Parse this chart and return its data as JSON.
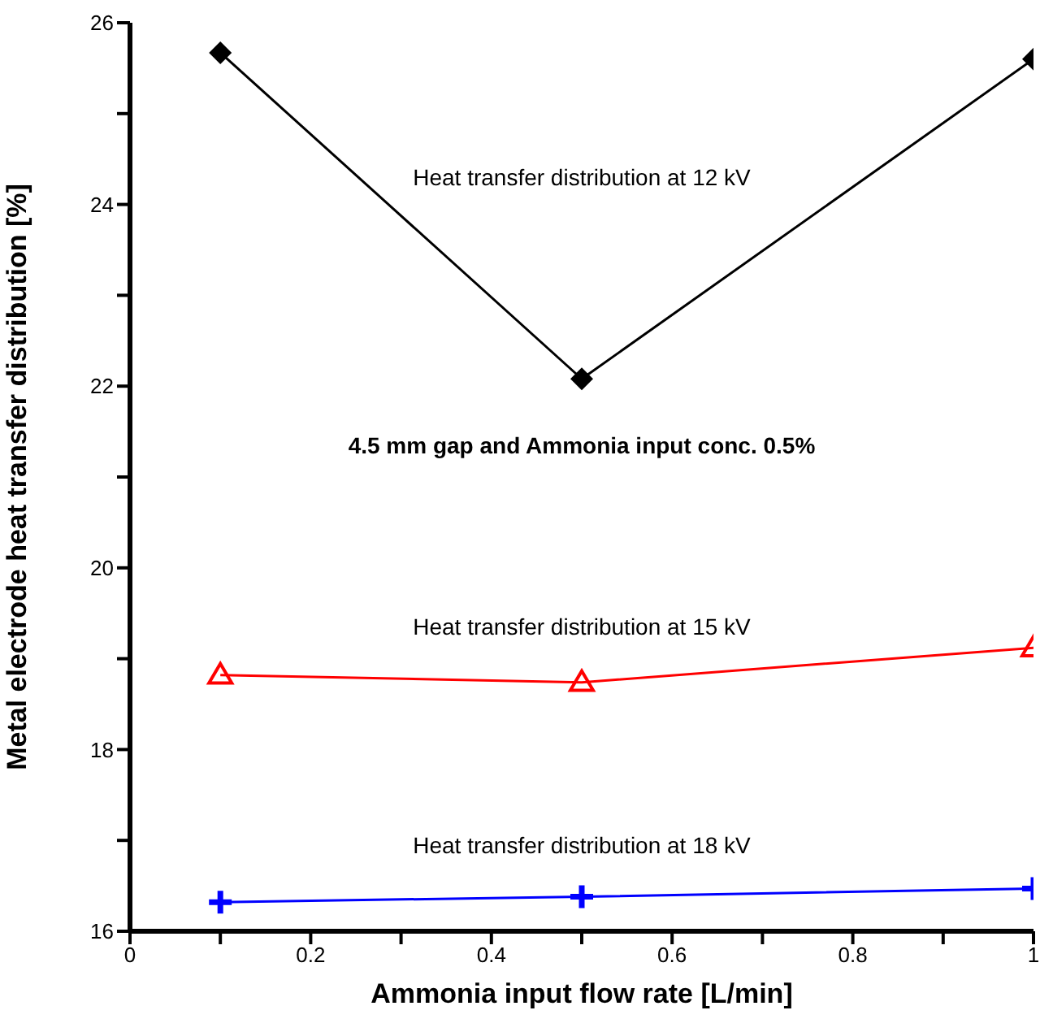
{
  "chart_data": {
    "type": "line",
    "xlabel": "Ammonia input flow rate [L/min]",
    "ylabel": "Metal electrode heat transfer distribution [%]",
    "x": [
      0.1,
      0.5,
      1
    ],
    "series": [
      {
        "color": "#000000",
        "marker": "diamond",
        "values": [
          25.67,
          22.08,
          25.6
        ]
      },
      {
        "color": "#ff0000",
        "marker": "triangle",
        "values": [
          18.82,
          18.74,
          19.12
        ]
      },
      {
        "color": "#0000ff",
        "marker": "cross",
        "values": [
          16.32,
          16.38,
          16.47
        ]
      }
    ],
    "xlim": [
      0,
      1
    ],
    "xticks": [
      0,
      {
        "value": 0.1,
        "label": null
      },
      0.2,
      {
        "value": 0.3,
        "label": null
      },
      0.4,
      {
        "value": 0.5,
        "label": null
      },
      0.6,
      {
        "value": 0.7,
        "label": null
      },
      0.8,
      {
        "value": 0.9,
        "label": null
      },
      1
    ],
    "ylim": [
      16,
      26
    ],
    "yticks": [
      16,
      {
        "value": 17,
        "label": null
      },
      18,
      {
        "value": 19,
        "label": null
      },
      20,
      {
        "value": 21,
        "label": null
      },
      22,
      {
        "value": 23,
        "label": null
      },
      24,
      {
        "value": 25,
        "label": null
      },
      26
    ],
    "annotations": [
      "Heat transfer distribution at 12 kV",
      "4.5 mm gap and Ammonia input conc. 0.5%",
      "Heat transfer distribution at 15 kV",
      "Heat transfer distribution at 18 kV"
    ]
  }
}
